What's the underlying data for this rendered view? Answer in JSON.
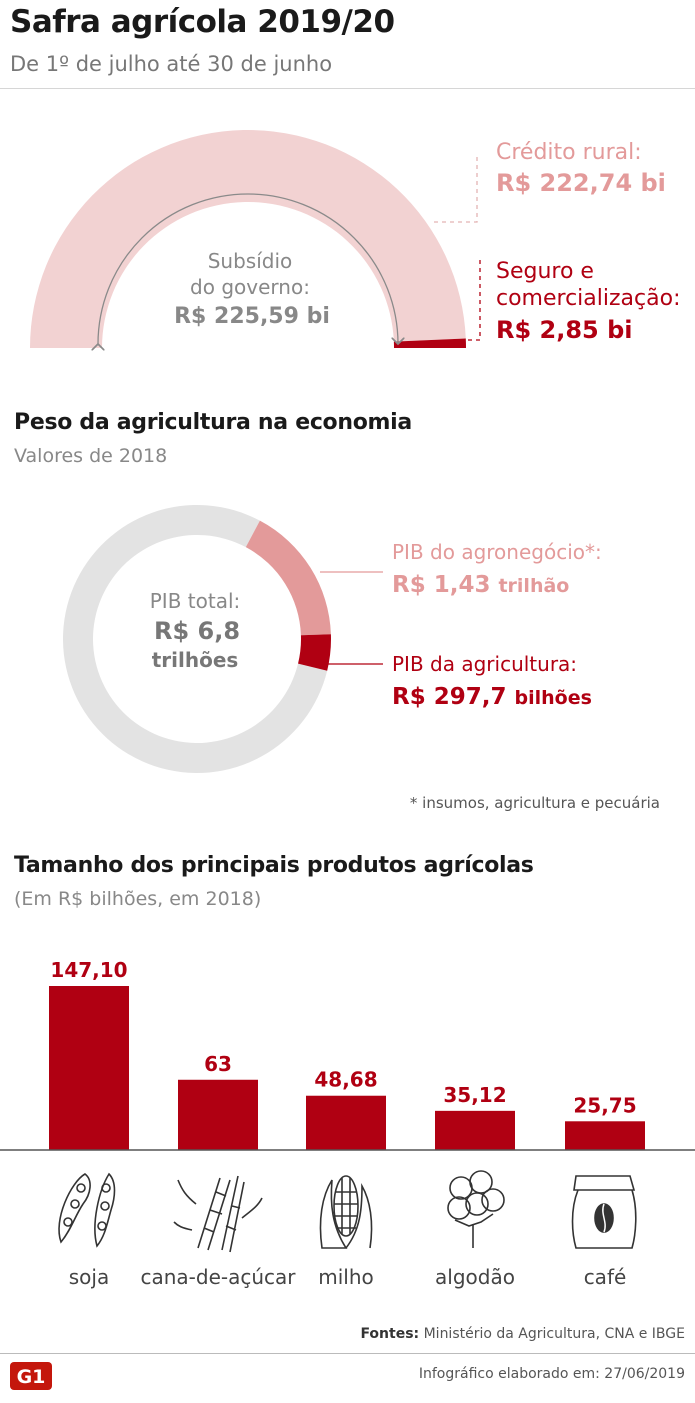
{
  "header": {
    "title": "Safra agrícola 2019/20",
    "subtitle": "De 1º de julho até 30 de junho"
  },
  "subsidy": {
    "center_line1": "Subsídio",
    "center_line2": "do governo:",
    "center_value": "R$ 225,59 bi",
    "credit_label": "Crédito rural:",
    "credit_value": "R$ 222,74 bi",
    "insurance_label_line1": "Seguro e",
    "insurance_label_line2": "comercialização:",
    "insurance_value": "R$ 2,85 bi",
    "colors": {
      "credit": "#f2d2d2",
      "insurance": "#b00012"
    }
  },
  "economy": {
    "title": "Peso da agricultura na economia",
    "subtitle": "Valores de 2018",
    "center_label": "PIB total:",
    "center_value_line1": "R$ 6,8",
    "center_value_line2": "trilhões",
    "agro_label": "PIB do agronegócio*:",
    "agro_value": "R$ 1,43",
    "agro_unit": "trilhão",
    "agri_label": "PIB da agricultura:",
    "agri_value": "R$ 297,7",
    "agri_unit": "bilhões",
    "footnote": "* insumos, agricultura e pecuária",
    "colors": {
      "total": "#e3e3e3",
      "agro": "#e39a9a",
      "agri": "#b00012"
    }
  },
  "products": {
    "title": "Tamanho dos principais produtos agrícolas",
    "subtitle": "(Em R$ bilhões, em 2018)",
    "icons": [
      "soybean-icon",
      "sugarcane-icon",
      "corn-icon",
      "cotton-icon",
      "coffee-sack-icon"
    ]
  },
  "chart_data": [
    {
      "type": "pie",
      "title": "",
      "labels": [
        "Crédito rural",
        "Seguro e comercialização"
      ],
      "values": [
        222.74,
        2.85
      ],
      "total": 225.59,
      "unit": "R$ bi"
    },
    {
      "type": "pie",
      "title": "",
      "labels": [
        "PIB total",
        "PIB do agronegócio",
        "PIB da agricultura"
      ],
      "values": [
        6800,
        1430,
        297.7
      ],
      "unit": "R$ bilhões"
    },
    {
      "type": "bar",
      "title": "Tamanho dos principais produtos agrícolas",
      "categories": [
        "soja",
        "cana-de-açúcar",
        "milho",
        "algodão",
        "café"
      ],
      "values": [
        147.1,
        63,
        48.68,
        35.12,
        25.75
      ],
      "value_labels": [
        "147,10",
        "63",
        "48,68",
        "35,12",
        "25,75"
      ],
      "ylabel": "",
      "ylim": [
        0,
        147.1
      ],
      "bar_color": "#b00012"
    }
  ],
  "footer": {
    "sources_label": "Fontes:",
    "sources_text": "Ministério da Agricultura, CNA e IBGE",
    "date_text": "Infográfico elaborado em: 27/06/2019",
    "logo_text": "G1"
  }
}
